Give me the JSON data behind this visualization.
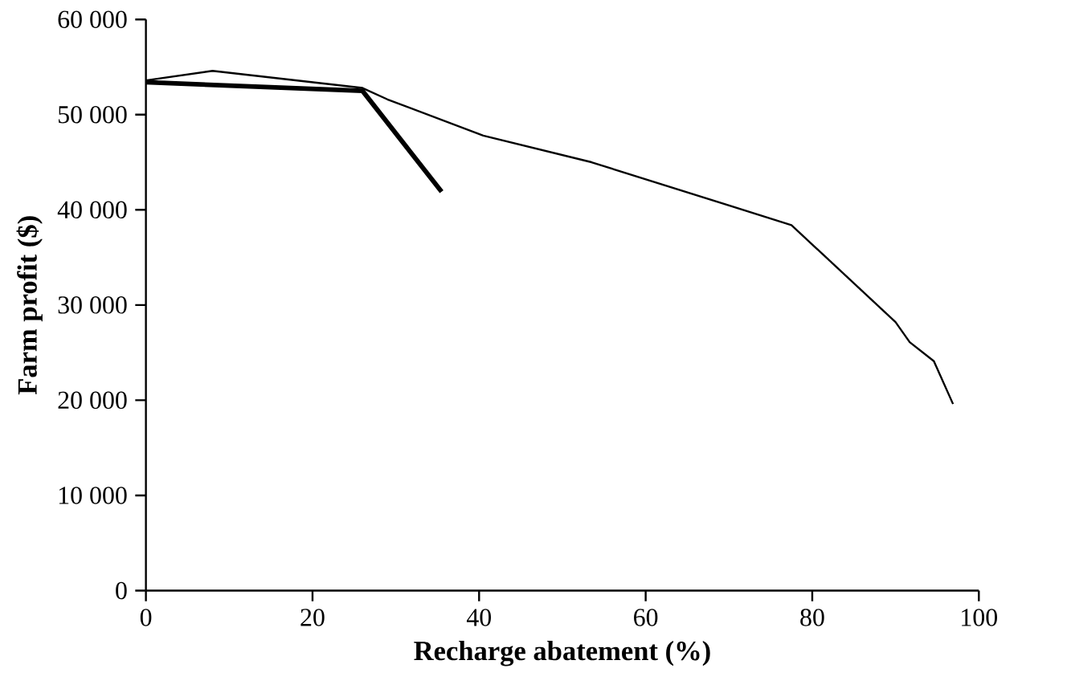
{
  "chart_data": {
    "type": "line",
    "xlabel": "Recharge abatement (%)",
    "ylabel": "Farm profit ($)",
    "xlim": [
      0,
      100
    ],
    "xticks": [
      0,
      20,
      40,
      60,
      80,
      100
    ],
    "ylim": [
      0,
      60000
    ],
    "yticks": [
      0,
      {
        "value": 10000,
        "label": "10 000"
      },
      {
        "value": 20000,
        "label": "20 000"
      },
      {
        "value": 30000,
        "label": "30 000"
      },
      {
        "value": 40000,
        "label": "40 000"
      },
      {
        "value": 50000,
        "label": "50 000"
      },
      {
        "value": 60000,
        "label": "60 000"
      }
    ],
    "marker": "none",
    "line_style": "solid",
    "series": [
      {
        "color": "#000000",
        "x": [
          0,
          8,
          26,
          29,
          40.5,
          53.5,
          77.5,
          90,
          91.7,
          94.6,
          96.9
        ],
        "values": [
          53600,
          54600,
          52800,
          51600,
          47800,
          45000,
          38400,
          28200,
          26100,
          24100,
          19600
        ]
      },
      {
        "color": "#000000",
        "x": [
          0,
          26,
          35.5
        ],
        "values": [
          53400,
          52500,
          41900
        ]
      }
    ]
  }
}
